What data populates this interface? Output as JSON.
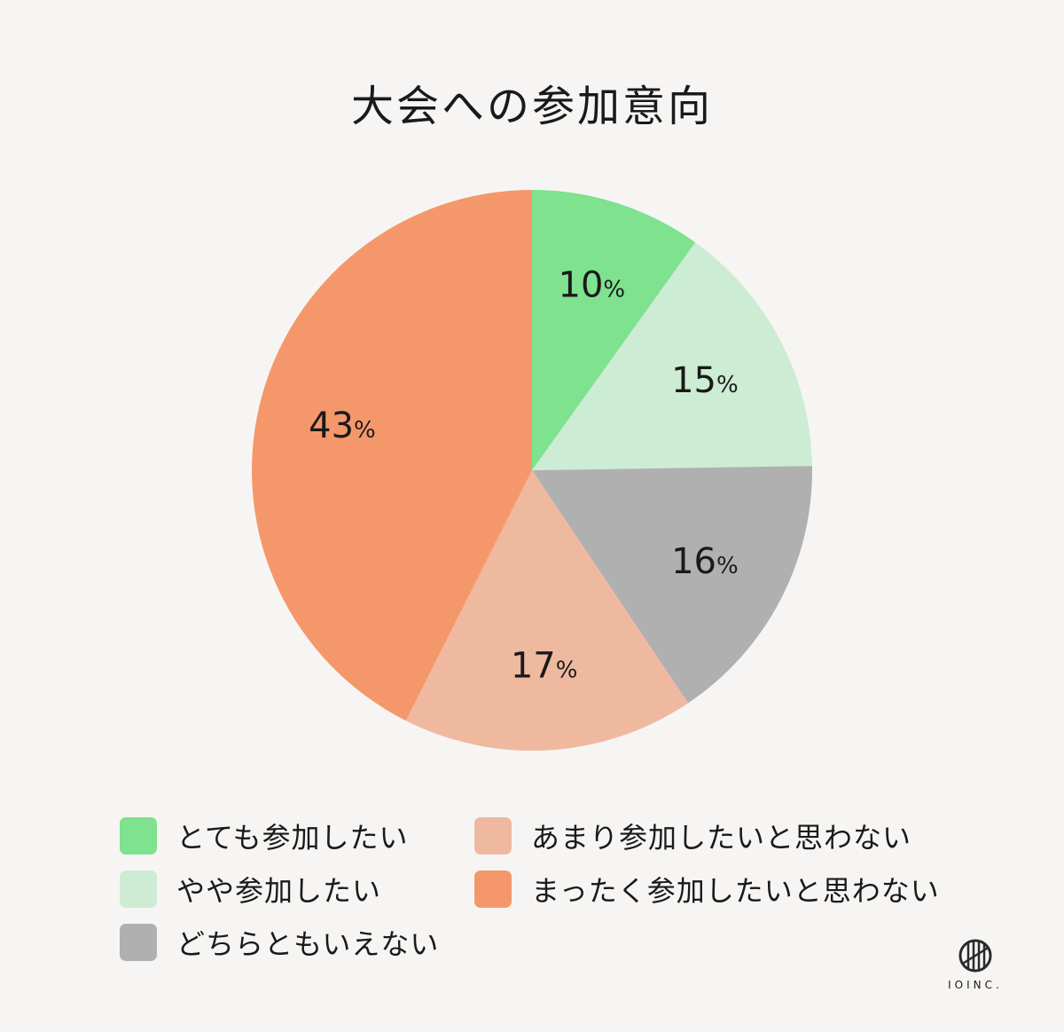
{
  "chart_data": {
    "type": "pie",
    "title": "大会への参加意向",
    "unit": "%",
    "slices": [
      {
        "label": "とても参加したい",
        "value": 10,
        "color": "#7ee28e"
      },
      {
        "label": "やや参加したい",
        "value": 15,
        "color": "#cdecd4"
      },
      {
        "label": "どちらともいえない",
        "value": 16,
        "color": "#b0b0b0"
      },
      {
        "label": "あまり参加したいと思わない",
        "value": 17,
        "color": "#efb9a0"
      },
      {
        "label": "まったく参加したいと思わない",
        "value": 43,
        "color": "#f4986b"
      }
    ],
    "legend_placement": "bottom"
  },
  "logo": {
    "text": "IOINC.",
    "icon": "io-inc-logo-icon"
  }
}
